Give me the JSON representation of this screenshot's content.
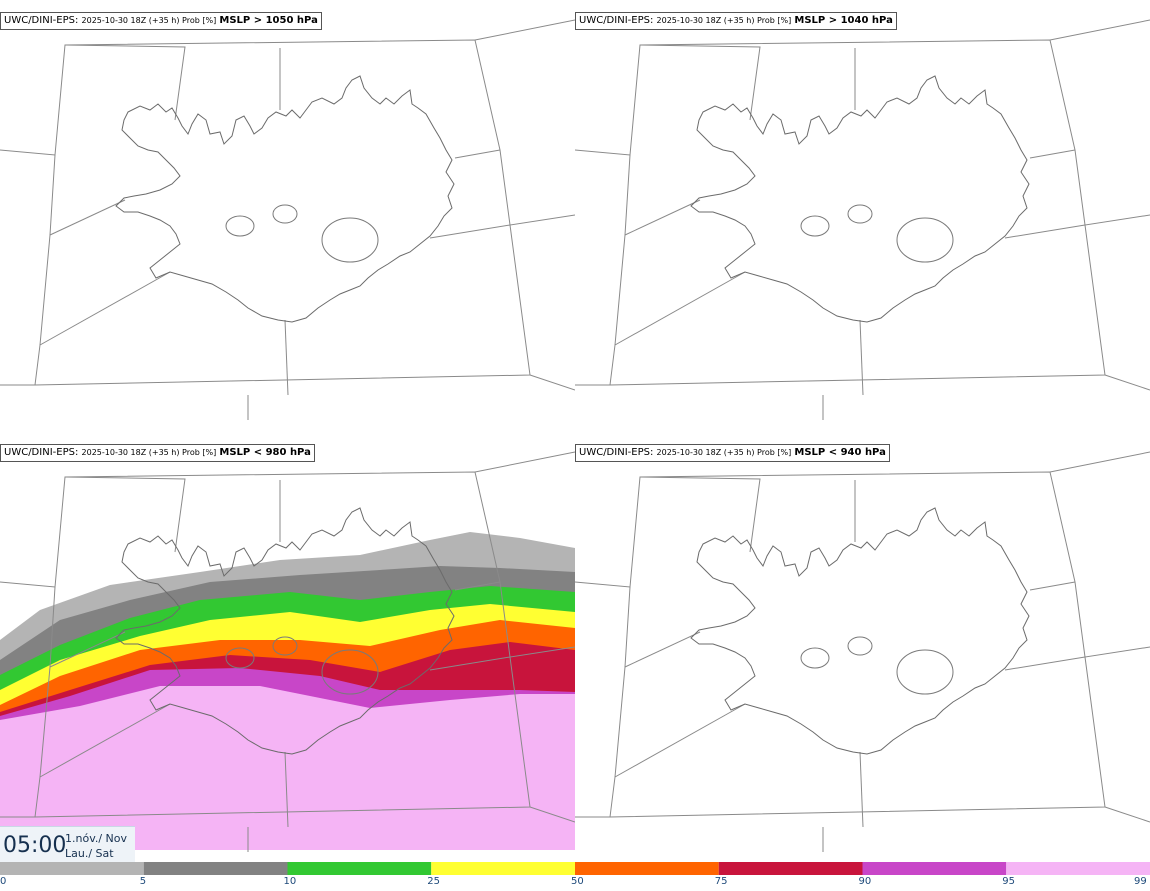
{
  "panels": [
    {
      "model": "UWC/DINI-EPS",
      "run": "2025-10-30 18Z (+35 h) Prob [%]",
      "threshold": "MSLP > 1050 hPa"
    },
    {
      "model": "UWC/DINI-EPS",
      "run": "2025-10-30 18Z (+35 h) Prob [%]",
      "threshold": "MSLP > 1040 hPa"
    },
    {
      "model": "UWC/DINI-EPS",
      "run": "2025-10-30 18Z (+35 h) Prob [%]",
      "threshold": "MSLP < 980 hPa"
    },
    {
      "model": "UWC/DINI-EPS",
      "run": "2025-10-30 18Z (+35 h) Prob [%]",
      "threshold": "MSLP < 940 hPa"
    }
  ],
  "valid_time": {
    "time": "05:00",
    "date_line1": "1.nóv./ Nov",
    "date_line2": "Lau./ Sat"
  },
  "colorbar": {
    "ticks": [
      "0",
      "5",
      "10",
      "25",
      "50",
      "75",
      "90",
      "95",
      "99"
    ],
    "colors": [
      "#ffffff",
      "#b4b4b4",
      "#828282",
      "#32c832",
      "#ffff32",
      "#ff6400",
      "#c8143c",
      "#c846c8",
      "#f5b4f5"
    ]
  }
}
